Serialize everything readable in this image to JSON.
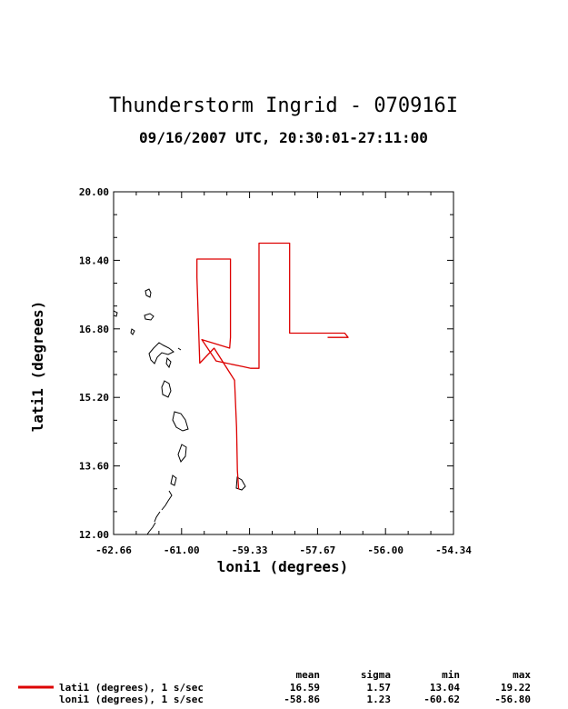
{
  "chart_data": {
    "type": "line",
    "title": "Thunderstorm Ingrid - 070916I",
    "subtitle": "09/16/2007  UTC, 20:30:01-27:11:00",
    "xlabel": "loni1 (degrees)",
    "ylabel": "lati1 (degrees)",
    "xlim": [
      -62.66,
      -54.34
    ],
    "ylim": [
      12.0,
      20.0
    ],
    "x_ticks": [
      "-62.66",
      "-61.00",
      "-59.33",
      "-57.67",
      "-56.00",
      "-54.34"
    ],
    "y_ticks": [
      "12.00",
      "13.60",
      "15.20",
      "16.80",
      "18.40",
      "20.00"
    ],
    "grid": false,
    "series": [
      {
        "color": "#dd0000",
        "x": [
          -59.6,
          -59.63,
          -59.65,
          -59.7,
          -60.2,
          -60.55,
          -60.62,
          -60.62,
          -60.62,
          -59.8,
          -59.8,
          -59.82,
          -60.5,
          -60.15,
          -59.5,
          -59.3,
          -59.1,
          -59.1,
          -58.35,
          -58.35,
          -58.33,
          -57.0,
          -56.92,
          -57.42
        ],
        "y": [
          13.05,
          13.5,
          14.5,
          15.6,
          16.35,
          16.0,
          18.0,
          18.43,
          18.43,
          18.43,
          16.6,
          16.35,
          16.55,
          16.05,
          15.92,
          15.88,
          15.88,
          18.8,
          18.8,
          16.7,
          16.7,
          16.7,
          16.6,
          16.6
        ]
      }
    ],
    "coastline_color": "#000000",
    "stats": {
      "headers": [
        "mean",
        "sigma",
        "min",
        "max"
      ],
      "rows": [
        {
          "label": "lati1 (degrees), 1 s/sec",
          "values": [
            "16.59",
            "1.57",
            "13.04",
            "19.22"
          ],
          "color": "#dd0000"
        },
        {
          "label": "loni1 (degrees), 1 s/sec",
          "values": [
            "-58.86",
            "1.23",
            "-60.62",
            "-56.80"
          ],
          "color": ""
        }
      ]
    }
  }
}
